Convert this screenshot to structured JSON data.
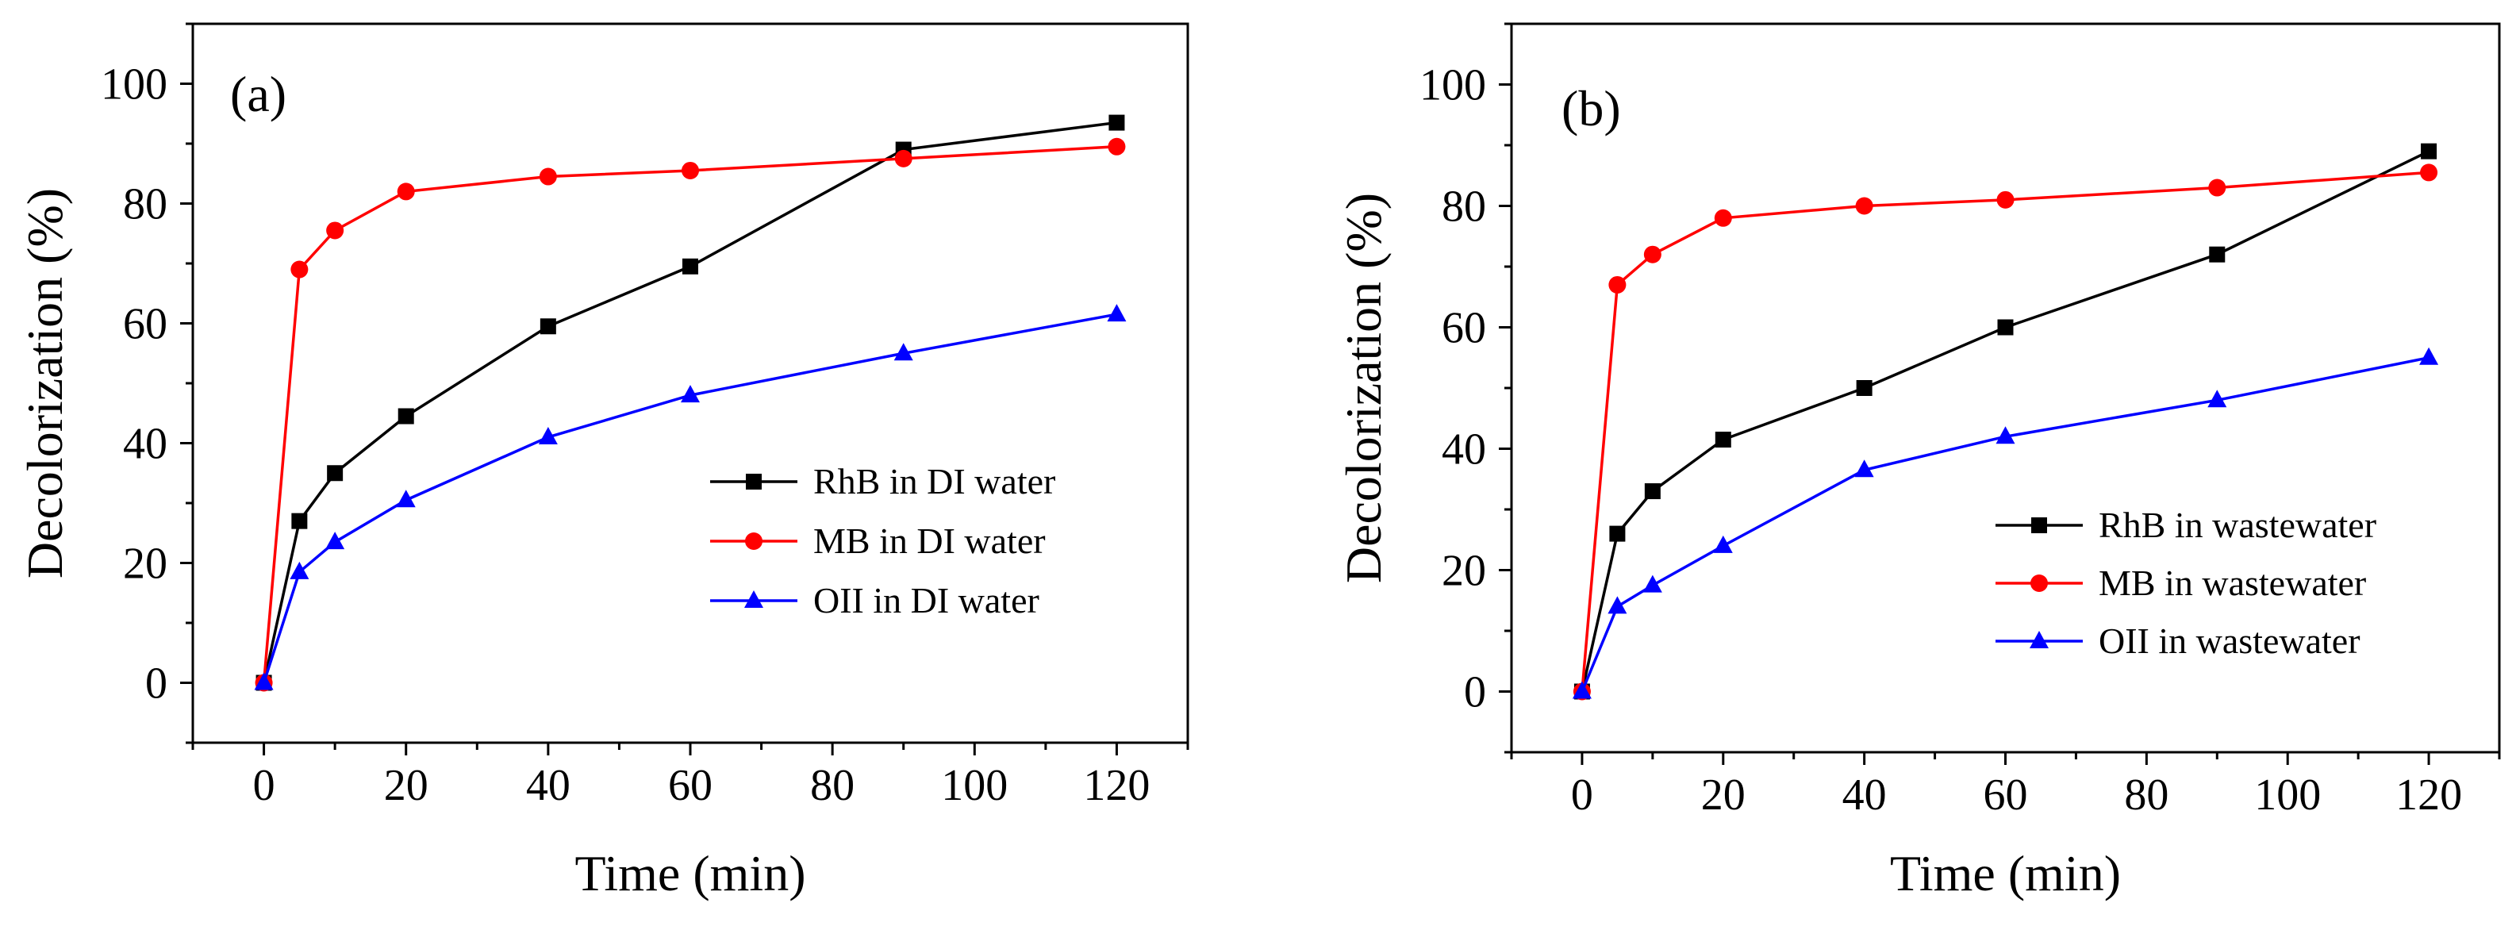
{
  "chart_data": [
    {
      "panel": "a",
      "panel_label": "(a)",
      "type": "line",
      "xlabel": "Time (min)",
      "ylabel": "Decolorization (%)",
      "xlim": [
        -10,
        130
      ],
      "ylim": [
        -10,
        110
      ],
      "x_ticks": [
        0,
        20,
        40,
        60,
        80,
        100,
        120
      ],
      "y_ticks": [
        0,
        20,
        40,
        60,
        80,
        100
      ],
      "x_tick_labels": [
        "0",
        "20",
        "40",
        "60",
        "80",
        "100",
        "120"
      ],
      "y_tick_labels": [
        "0",
        "20",
        "40",
        "60",
        "80",
        "100"
      ],
      "legend_position": "lower-right",
      "series": [
        {
          "name": "RhB in DI water",
          "color": "#000000",
          "marker": "square",
          "x": [
            0,
            5,
            10,
            20,
            40,
            60,
            90,
            120
          ],
          "y": [
            0,
            27,
            35,
            44.5,
            59.5,
            69.5,
            89,
            93.5
          ]
        },
        {
          "name": "MB in DI water",
          "color": "#ff0000",
          "marker": "circle",
          "x": [
            0,
            5,
            10,
            20,
            40,
            60,
            90,
            120
          ],
          "y": [
            0,
            69,
            75.5,
            82,
            84.5,
            85.5,
            87.5,
            89.5
          ]
        },
        {
          "name": "OII in DI water",
          "color": "#0000ff",
          "marker": "triangle",
          "x": [
            0,
            5,
            10,
            20,
            40,
            60,
            90,
            120
          ],
          "y": [
            0,
            18.5,
            23.5,
            30.5,
            41,
            48,
            55,
            61.5
          ]
        }
      ]
    },
    {
      "panel": "b",
      "panel_label": "(b)",
      "type": "line",
      "xlabel": "Time (min)",
      "ylabel": "Decolorization (%)",
      "xlim": [
        -10,
        130
      ],
      "ylim": [
        -10,
        110
      ],
      "x_ticks": [
        0,
        20,
        40,
        60,
        80,
        100,
        120
      ],
      "y_ticks": [
        0,
        20,
        40,
        60,
        80,
        100
      ],
      "x_tick_labels": [
        "0",
        "20",
        "40",
        "60",
        "80",
        "100",
        "120"
      ],
      "y_tick_labels": [
        "0",
        "20",
        "40",
        "60",
        "80",
        "100"
      ],
      "legend_position": "lower-right",
      "series": [
        {
          "name": "RhB in wastewater",
          "color": "#000000",
          "marker": "square",
          "x": [
            0,
            5,
            10,
            20,
            40,
            60,
            90,
            120
          ],
          "y": [
            0,
            26,
            33,
            41.5,
            50,
            60,
            72,
            89
          ]
        },
        {
          "name": "MB in wastewater",
          "color": "#ff0000",
          "marker": "circle",
          "x": [
            0,
            5,
            10,
            20,
            40,
            60,
            90,
            120
          ],
          "y": [
            0,
            67,
            72,
            78,
            80,
            81,
            83,
            85.5
          ]
        },
        {
          "name": "OII in wastewater",
          "color": "#0000ff",
          "marker": "triangle",
          "x": [
            0,
            5,
            10,
            20,
            40,
            60,
            90,
            120
          ],
          "y": [
            0,
            14,
            17.5,
            24,
            36.5,
            42,
            48,
            55
          ]
        }
      ]
    }
  ]
}
